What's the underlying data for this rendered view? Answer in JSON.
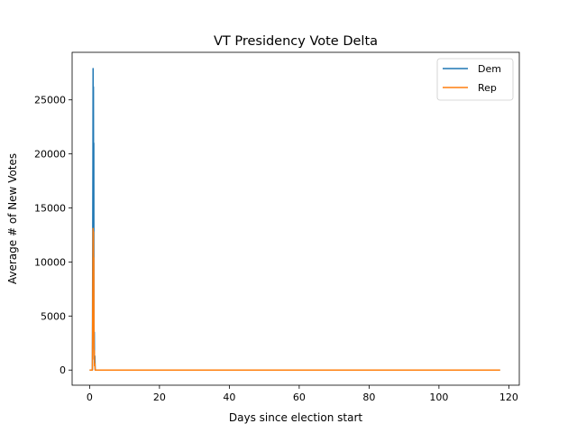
{
  "chart_data": {
    "type": "line",
    "title": "VT Presidency Vote Delta",
    "xlabel": "Days since election start",
    "ylabel": "Average # of New Votes",
    "xlim": [
      -5,
      123
    ],
    "ylim": [
      -1400,
      29400
    ],
    "xticks": [
      0,
      20,
      40,
      60,
      80,
      100,
      120
    ],
    "yticks": [
      0,
      5000,
      10000,
      15000,
      20000,
      25000
    ],
    "grid": false,
    "legend_position": "top-right",
    "series": [
      {
        "name": "Dem",
        "color": "#1f77b4",
        "x": [
          0.0,
          0.8,
          0.95,
          1.0,
          1.05,
          1.1,
          1.15,
          1.2,
          1.25,
          1.3,
          1.35,
          1.4,
          1.5,
          1.6,
          1.7,
          1.8,
          2.0,
          3.0,
          10.0,
          30.0,
          60.0,
          90.0,
          117.5
        ],
        "values": [
          0,
          0,
          18800,
          27900,
          19000,
          26200,
          12000,
          21000,
          4300,
          2000,
          3500,
          600,
          1300,
          0,
          0,
          0,
          0,
          0,
          0,
          0,
          0,
          0,
          0
        ]
      },
      {
        "name": "Rep",
        "color": "#ff7f0e",
        "x": [
          0.0,
          0.8,
          0.95,
          1.0,
          1.05,
          1.1,
          1.15,
          1.2,
          1.25,
          1.3,
          1.35,
          1.4,
          1.5,
          1.6,
          1.7,
          1.8,
          2.0,
          3.0,
          10.0,
          30.0,
          60.0,
          90.0,
          117.5
        ],
        "values": [
          0,
          0,
          9500,
          13100,
          9000,
          12800,
          6000,
          10400,
          2500,
          1000,
          1800,
          400,
          600,
          0,
          0,
          0,
          0,
          0,
          0,
          0,
          0,
          0,
          0
        ]
      }
    ]
  }
}
